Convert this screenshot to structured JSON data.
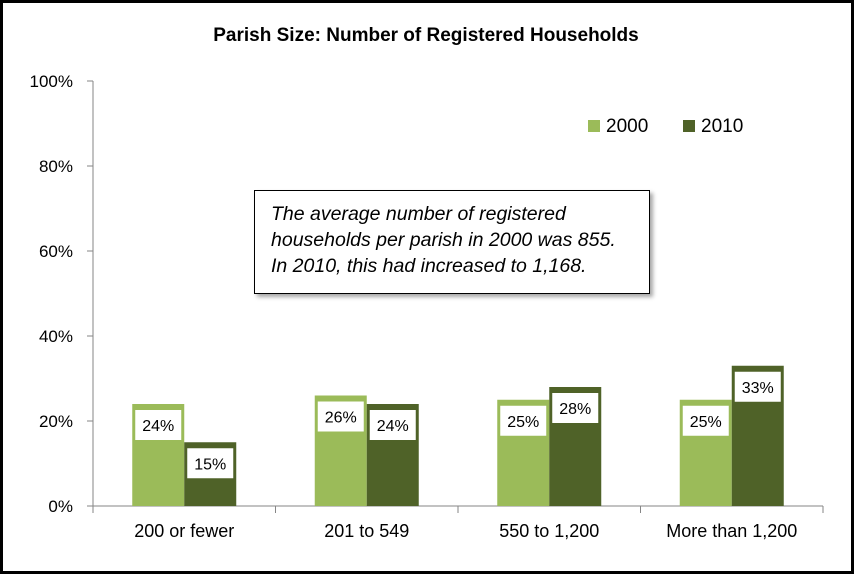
{
  "chart_data": {
    "type": "bar",
    "title": "Parish Size: Number of Registered Households",
    "categories": [
      "200 or fewer",
      "201 to 549",
      "550 to 1,200",
      "More than 1,200"
    ],
    "series": [
      {
        "name": "2000",
        "values": [
          24,
          26,
          25,
          25
        ],
        "labels": [
          "24%",
          "26%",
          "25%",
          "25%"
        ],
        "color": "#9bbb59"
      },
      {
        "name": "2010",
        "values": [
          15,
          24,
          28,
          33
        ],
        "labels": [
          "15%",
          "24%",
          "28%",
          "33%"
        ],
        "color": "#4f6228"
      }
    ],
    "ylim": [
      0,
      100
    ],
    "yticks": [
      "0%",
      "20%",
      "40%",
      "60%",
      "80%",
      "100%"
    ],
    "legend_position": "top-right",
    "grid": false,
    "annotation": [
      "The average number of registered",
      "households per parish in 2000 was 855.",
      "In 2010, this had increased to 1,168."
    ]
  }
}
